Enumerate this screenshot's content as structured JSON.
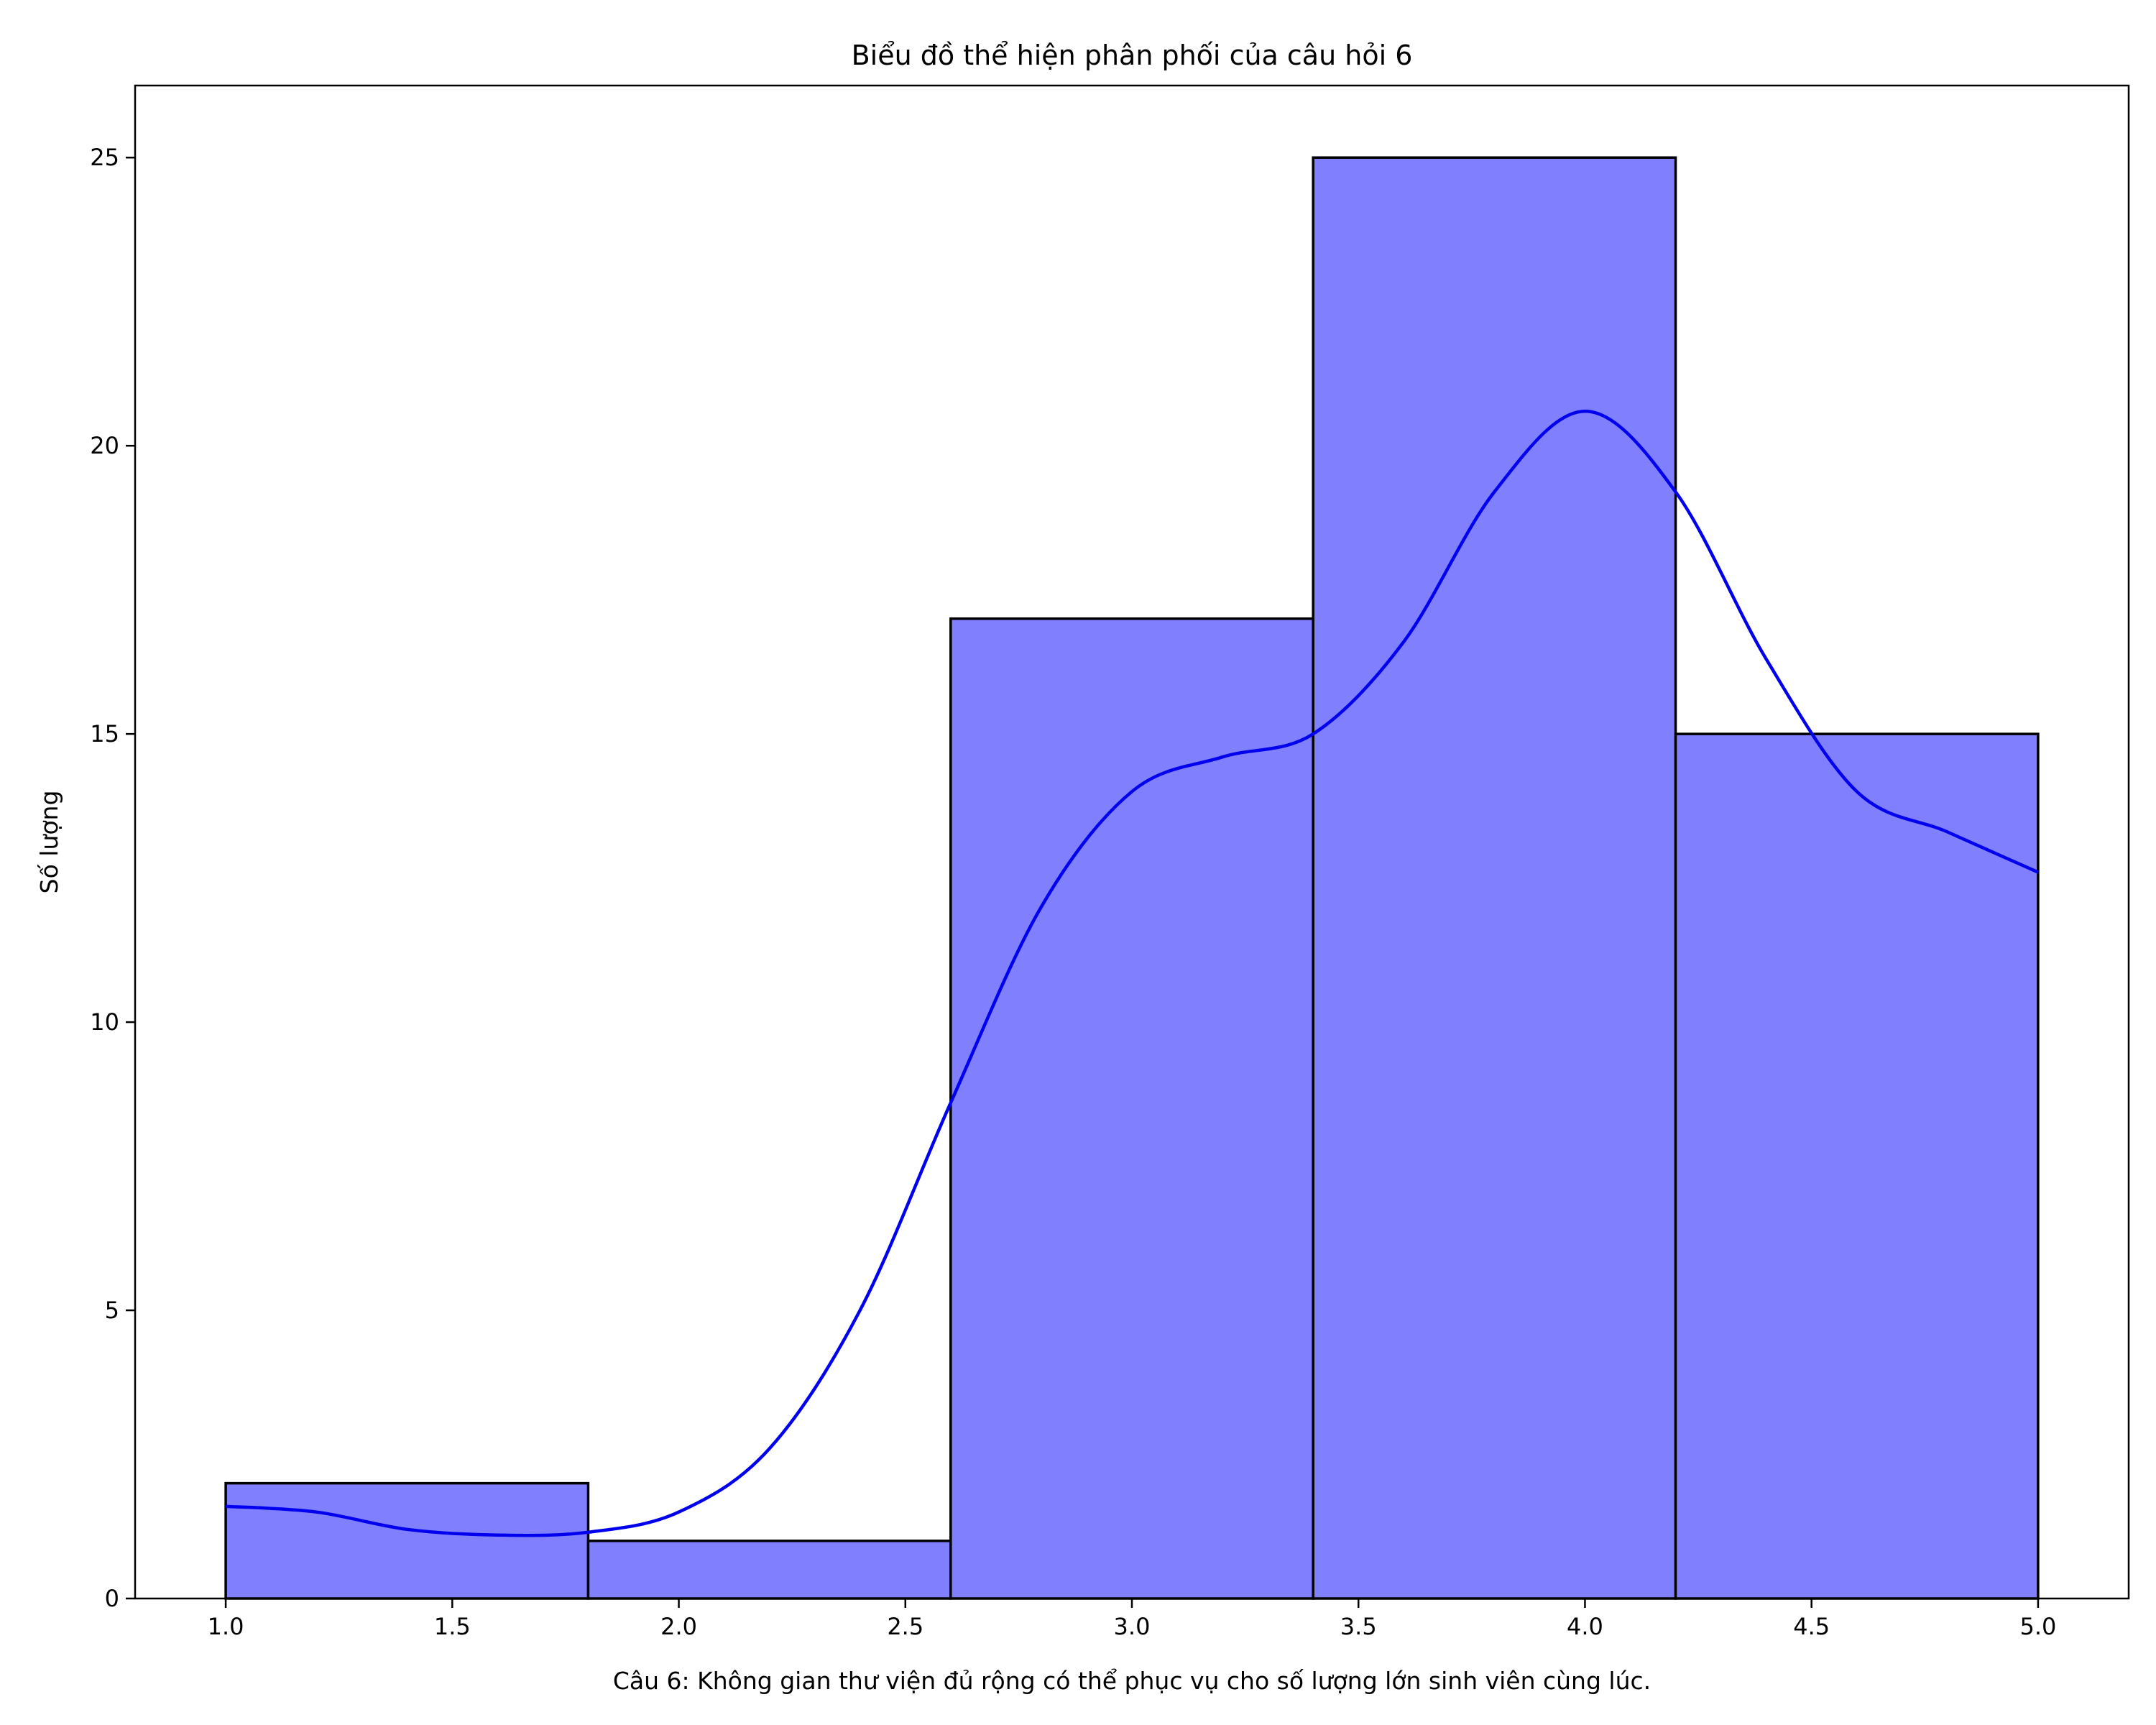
{
  "chart_data": {
    "type": "bar",
    "title": "Biểu đồ thể hiện phân phối của câu hỏi 6",
    "xlabel": "Câu 6: Không gian thư viện đủ rộng có thể phục vụ cho số lượng lớn sinh viên cùng lúc.",
    "ylabel": "Số lượng",
    "bins": [
      {
        "x0": 1.0,
        "x1": 1.8,
        "count": 2
      },
      {
        "x0": 1.8,
        "x1": 2.6,
        "count": 1
      },
      {
        "x0": 2.6,
        "x1": 3.4,
        "count": 17
      },
      {
        "x0": 3.4,
        "x1": 4.2,
        "count": 25
      },
      {
        "x0": 4.2,
        "x1": 5.0,
        "count": 15
      }
    ],
    "kde": {
      "x": [
        1.0,
        1.2,
        1.4,
        1.6,
        1.8,
        2.0,
        2.2,
        2.4,
        2.6,
        2.8,
        3.0,
        3.2,
        3.4,
        3.6,
        3.8,
        4.0,
        4.2,
        4.4,
        4.6,
        4.8,
        5.0
      ],
      "y": [
        1.6,
        1.5,
        1.2,
        1.1,
        1.15,
        1.5,
        2.6,
        5.0,
        8.6,
        12.0,
        14.0,
        14.6,
        15.0,
        16.6,
        19.2,
        20.6,
        19.2,
        16.3,
        14.0,
        13.3,
        12.6
      ]
    },
    "xlim": [
      0.8,
      5.2
    ],
    "ylim": [
      0,
      26.25
    ],
    "xticks": [
      "1.0",
      "1.5",
      "2.0",
      "2.5",
      "3.0",
      "3.5",
      "4.0",
      "4.5",
      "5.0"
    ],
    "yticks": [
      "0",
      "5",
      "10",
      "15",
      "20",
      "25"
    ],
    "colors": {
      "bar_fill": "#8080ff",
      "bar_edge": "#000000",
      "kde_line": "#0000ee"
    },
    "grid": false,
    "legend": "none"
  }
}
